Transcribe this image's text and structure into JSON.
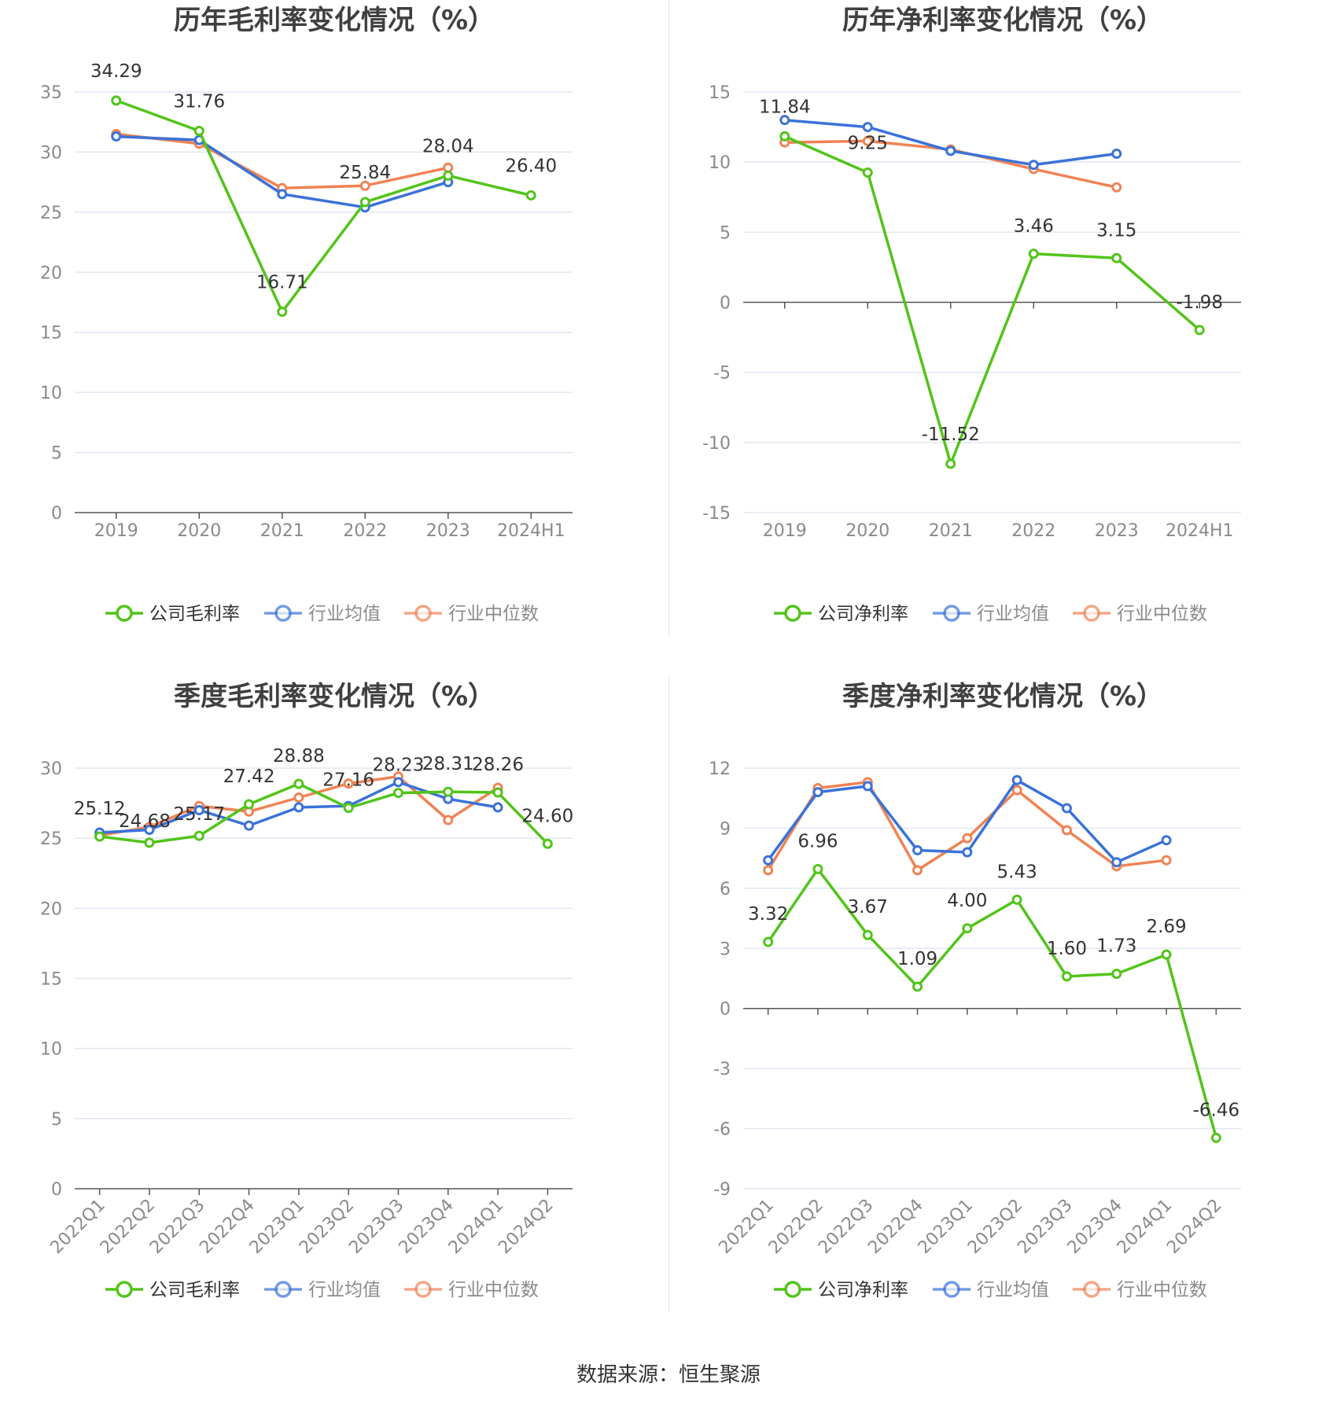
{
  "source": "数据来源：恒生聚源",
  "colors": {
    "company": "#52c41a",
    "avg": "#3a72d9",
    "median": "#f08354",
    "grid": "#e3e6f2",
    "axis": "#555555",
    "tick": "#8a8a8a"
  },
  "chart_data": [
    {
      "type": "line",
      "title": "历年毛利率变化情况（%）",
      "categories": [
        "2019",
        "2020",
        "2021",
        "2022",
        "2023",
        "2024H1"
      ],
      "ylim": [
        0,
        35
      ],
      "yticks": [
        0,
        5,
        10,
        15,
        20,
        25,
        30,
        35
      ],
      "grid": true,
      "legend": "bottom-center",
      "rotate_x": false,
      "series": [
        {
          "name": "公司毛利率",
          "key": "company",
          "values": [
            34.29,
            31.76,
            16.71,
            25.84,
            28.04,
            26.4
          ],
          "labels": [
            "34.29",
            "31.76",
            "16.71",
            "25.84",
            "28.04",
            "26.40"
          ]
        },
        {
          "name": "行业均值",
          "key": "avg",
          "values": [
            31.3,
            31.0,
            26.5,
            25.4,
            27.5,
            null
          ]
        },
        {
          "name": "行业中位数",
          "key": "median",
          "values": [
            31.5,
            30.7,
            27.0,
            27.2,
            28.7,
            null
          ]
        }
      ]
    },
    {
      "type": "line",
      "title": "历年净利率变化情况（%）",
      "categories": [
        "2019",
        "2020",
        "2021",
        "2022",
        "2023",
        "2024H1"
      ],
      "ylim": [
        -15,
        15
      ],
      "yticks": [
        -15,
        -10,
        -5,
        0,
        5,
        10,
        15
      ],
      "grid": true,
      "legend": "bottom-center",
      "rotate_x": false,
      "series": [
        {
          "name": "公司净利率",
          "key": "company",
          "values": [
            11.84,
            9.25,
            -11.52,
            3.46,
            3.15,
            -1.98
          ],
          "labels": [
            "11.84",
            "9.25",
            "-11.52",
            "3.46",
            "3.15",
            "-1.98"
          ]
        },
        {
          "name": "行业均值",
          "key": "avg",
          "values": [
            13.0,
            12.5,
            10.8,
            9.8,
            10.6,
            null
          ]
        },
        {
          "name": "行业中位数",
          "key": "median",
          "values": [
            11.4,
            11.5,
            10.9,
            9.5,
            8.2,
            null
          ]
        }
      ]
    },
    {
      "type": "line",
      "title": "季度毛利率变化情况（%）",
      "categories": [
        "2022Q1",
        "2022Q2",
        "2022Q3",
        "2022Q4",
        "2023Q1",
        "2023Q2",
        "2023Q3",
        "2023Q4",
        "2024Q1",
        "2024Q2"
      ],
      "ylim": [
        0,
        30
      ],
      "yticks": [
        0,
        5,
        10,
        15,
        20,
        25,
        30
      ],
      "grid": true,
      "legend": "bottom-center",
      "rotate_x": true,
      "series": [
        {
          "name": "公司毛利率",
          "key": "company",
          "values": [
            25.12,
            24.68,
            25.17,
            27.42,
            28.88,
            27.16,
            28.23,
            28.31,
            28.26,
            24.6
          ],
          "labels": [
            "25.12",
            "24.68",
            "25.17",
            "27.42",
            "28.88",
            "27.16",
            "28.23",
            "28.31",
            "28.26",
            "24.60"
          ]
        },
        {
          "name": "行业均值",
          "key": "avg",
          "values": [
            25.4,
            25.6,
            27.0,
            25.9,
            27.2,
            27.3,
            29.0,
            27.8,
            27.2,
            null
          ]
        },
        {
          "name": "行业中位数",
          "key": "median",
          "values": [
            25.2,
            25.8,
            27.3,
            26.9,
            27.9,
            28.9,
            29.4,
            26.3,
            28.6,
            null
          ]
        }
      ]
    },
    {
      "type": "line",
      "title": "季度净利率变化情况（%）",
      "categories": [
        "2022Q1",
        "2022Q2",
        "2022Q3",
        "2022Q4",
        "2023Q1",
        "2023Q2",
        "2023Q3",
        "2023Q4",
        "2024Q1",
        "2024Q2"
      ],
      "ylim": [
        -9,
        12
      ],
      "yticks": [
        -9,
        -6,
        -3,
        0,
        3,
        6,
        9,
        12
      ],
      "grid": true,
      "legend": "bottom-center",
      "rotate_x": true,
      "series": [
        {
          "name": "公司净利率",
          "key": "company",
          "values": [
            3.32,
            6.96,
            3.67,
            1.09,
            4.0,
            5.43,
            1.6,
            1.73,
            2.69,
            -6.46
          ],
          "labels": [
            "3.32",
            "6.96",
            "3.67",
            "1.09",
            "4.00",
            "5.43",
            "1.60",
            "1.73",
            "2.69",
            "-6.46"
          ]
        },
        {
          "name": "行业均值",
          "key": "avg",
          "values": [
            7.4,
            10.8,
            11.1,
            7.9,
            7.8,
            11.4,
            10.0,
            7.3,
            8.4,
            null
          ]
        },
        {
          "name": "行业中位数",
          "key": "median",
          "values": [
            6.9,
            11.0,
            11.3,
            6.9,
            8.5,
            10.9,
            8.9,
            7.1,
            7.4,
            null
          ]
        }
      ]
    }
  ]
}
